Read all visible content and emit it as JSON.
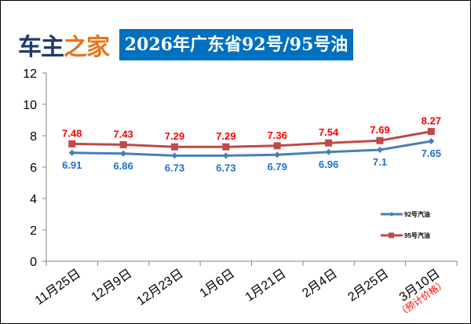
{
  "logo": {
    "part1": "车主",
    "part2": "之家"
  },
  "chart_data": {
    "type": "line",
    "title": "2026年广东省92号/95号油",
    "categories": [
      "11月25日",
      "12月9日",
      "12月23日",
      "1月6日",
      "1月21日",
      "2月4日",
      "2月25日",
      "3月10日"
    ],
    "annotation": "（预计价格）",
    "series": [
      {
        "name": "92号汽油",
        "color": "#4a7ebb",
        "values": [
          6.91,
          6.86,
          6.73,
          6.73,
          6.79,
          6.96,
          7.1,
          7.65
        ],
        "labels": [
          "6.91",
          "6.86",
          "6.73",
          "6.73",
          "6.79",
          "6.96",
          "7.1",
          "7.65"
        ],
        "label_color": "#1f6fd1"
      },
      {
        "name": "95号汽油",
        "color": "#be4b48",
        "values": [
          7.48,
          7.43,
          7.29,
          7.29,
          7.36,
          7.54,
          7.69,
          8.27
        ],
        "labels": [
          "7.48",
          "7.43",
          "7.29",
          "7.29",
          "7.36",
          "7.54",
          "7.69",
          "8.27"
        ],
        "label_color": "#ff0000"
      }
    ],
    "ylim": [
      0,
      12
    ],
    "yticks": [
      "0",
      "2",
      "4",
      "6",
      "8",
      "10",
      "12"
    ],
    "legend": "right"
  }
}
